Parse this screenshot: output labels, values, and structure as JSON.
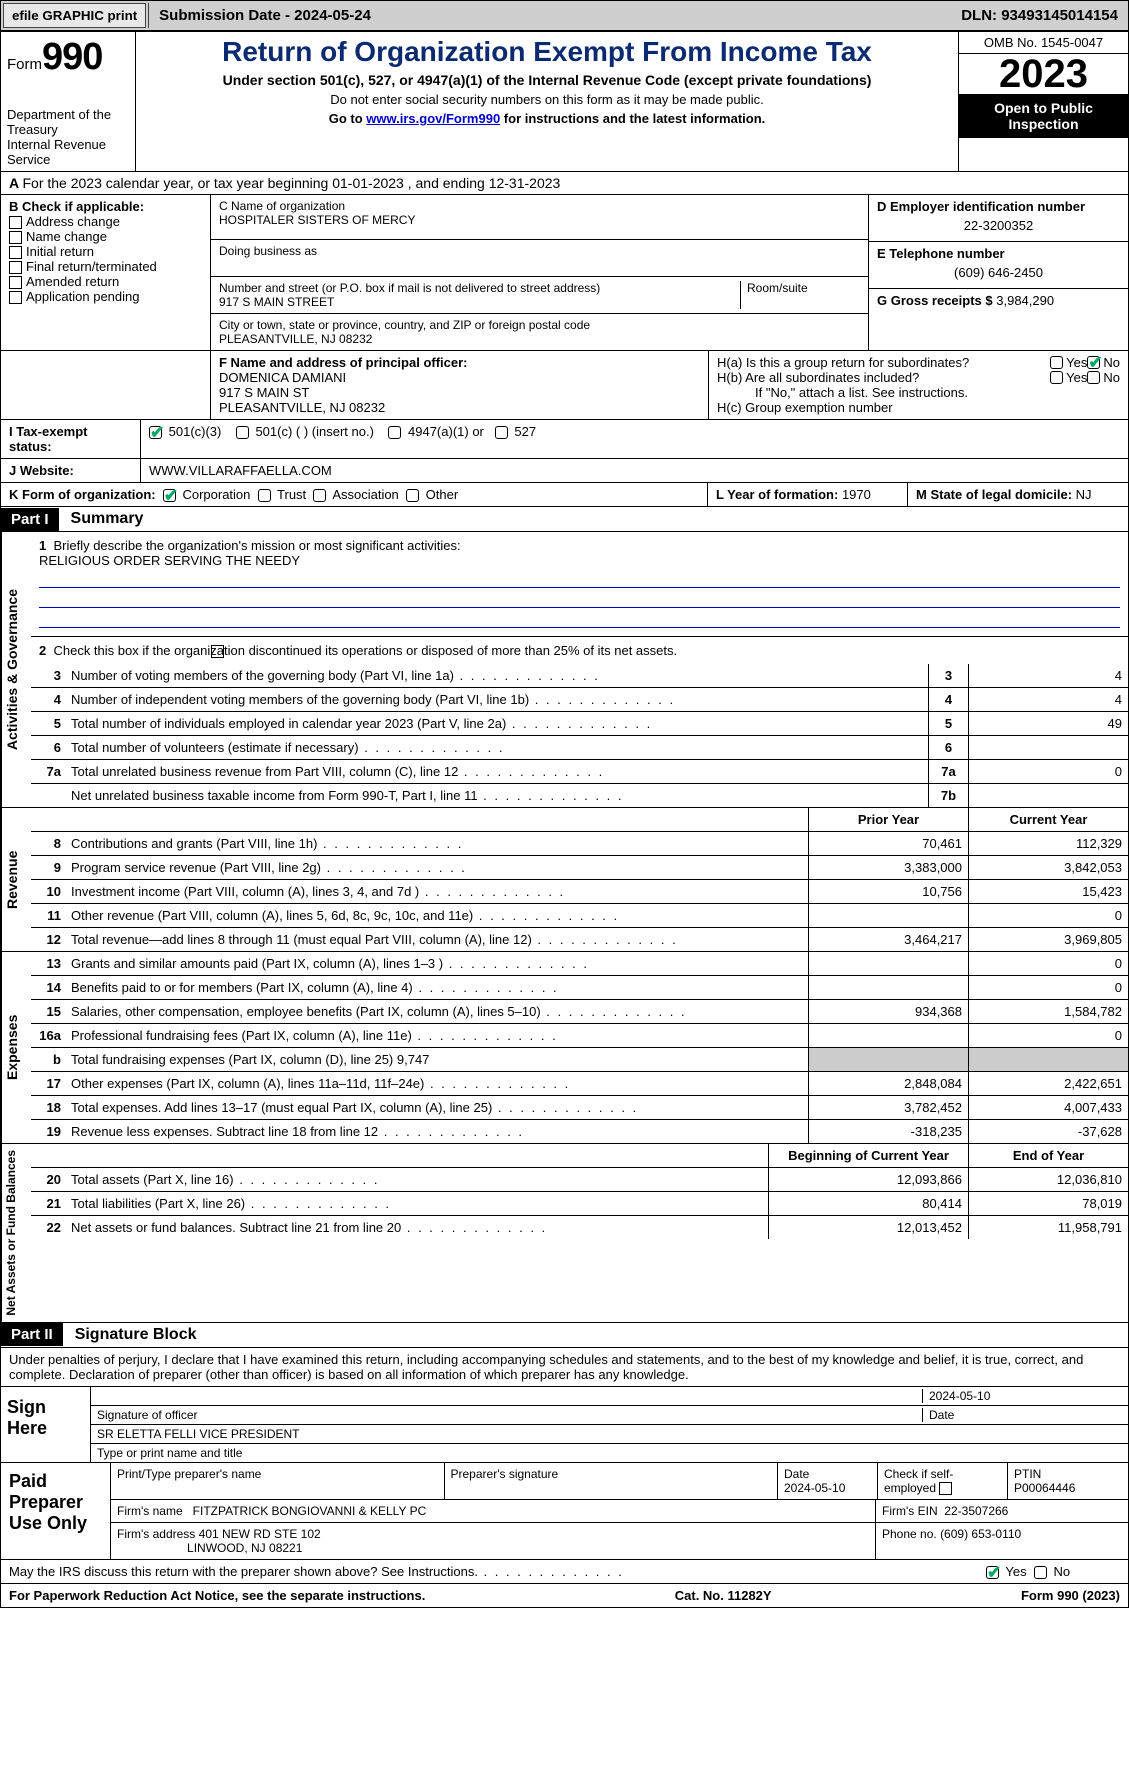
{
  "topbar": {
    "efile": "efile GRAPHIC print",
    "submission": "Submission Date - 2024-05-24",
    "dln": "DLN: 93493145014154"
  },
  "header": {
    "form_label": "Form",
    "form_num": "990",
    "dept": "Department of the Treasury",
    "irs": "Internal Revenue Service",
    "title": "Return of Organization Exempt From Income Tax",
    "subtitle": "Under section 501(c), 527, or 4947(a)(1) of the Internal Revenue Code (except private foundations)",
    "note1": "Do not enter social security numbers on this form as it may be made public.",
    "note2_pre": "Go to ",
    "note2_link": "www.irs.gov/Form990",
    "note2_post": " for instructions and the latest information.",
    "omb": "OMB No. 1545-0047",
    "year": "2023",
    "open": "Open to Public Inspection"
  },
  "A": "For the 2023 calendar year, or tax year beginning 01-01-2023   , and ending 12-31-2023",
  "B": {
    "label": "B Check if applicable:",
    "items": [
      "Address change",
      "Name change",
      "Initial return",
      "Final return/terminated",
      "Amended return",
      "Application pending"
    ]
  },
  "C": {
    "name_label": "C Name of organization",
    "name": "HOSPITALER SISTERS OF MERCY",
    "dba": "Doing business as",
    "addr_label": "Number and street (or P.O. box if mail is not delivered to street address)",
    "room": "Room/suite",
    "addr": "917 S MAIN STREET",
    "city_label": "City or town, state or province, country, and ZIP or foreign postal code",
    "city": "PLEASANTVILLE, NJ  08232"
  },
  "D": {
    "label": "D Employer identification number",
    "val": "22-3200352"
  },
  "E": {
    "label": "E Telephone number",
    "val": "(609) 646-2450"
  },
  "G": {
    "label": "G Gross receipts $",
    "val": "3,984,290"
  },
  "F": {
    "label": "F  Name and address of principal officer:",
    "name": "DOMENICA DAMIANI",
    "addr1": "917 S MAIN ST",
    "addr2": "PLEASANTVILLE, NJ  08232"
  },
  "H": {
    "a": "H(a)  Is this a group return for subordinates?",
    "b": "H(b)  Are all subordinates included?",
    "b_note": "If \"No,\" attach a list. See instructions.",
    "c": "H(c)  Group exemption number",
    "yes": "Yes",
    "no": "No"
  },
  "I": {
    "label": "I   Tax-exempt status:",
    "c3": "501(c)(3)",
    "c": "501(c) (  ) (insert no.)",
    "a1": "4947(a)(1) or",
    "s527": "527"
  },
  "J": {
    "label": "J   Website:",
    "val": "WWW.VILLARAFFAELLA.COM"
  },
  "K": {
    "label": "K Form of organization:",
    "corp": "Corporation",
    "trust": "Trust",
    "assoc": "Association",
    "other": "Other"
  },
  "L": {
    "label": "L Year of formation:",
    "val": "1970"
  },
  "M": {
    "label": "M State of legal domicile:",
    "val": "NJ"
  },
  "part1": {
    "num": "Part I",
    "title": "Summary"
  },
  "summary": {
    "q1": "Briefly describe the organization's mission or most significant activities:",
    "mission": "RELIGIOUS ORDER SERVING THE NEEDY",
    "q2": "Check this box        if the organization discontinued its operations or disposed of more than 25% of its net assets.",
    "lines": {
      "3": {
        "t": "Number of voting members of the governing body (Part VI, line 1a)",
        "v": "4"
      },
      "4": {
        "t": "Number of independent voting members of the governing body (Part VI, line 1b)",
        "v": "4"
      },
      "5": {
        "t": "Total number of individuals employed in calendar year 2023 (Part V, line 2a)",
        "v": "49"
      },
      "6": {
        "t": "Total number of volunteers (estimate if necessary)",
        "v": ""
      },
      "7a": {
        "t": "Total unrelated business revenue from Part VIII, column (C), line 12",
        "v": "0"
      },
      "7b": {
        "t": "Net unrelated business taxable income from Form 990-T, Part I, line 11",
        "v": ""
      }
    },
    "prior": "Prior Year",
    "current": "Current Year",
    "rev": {
      "8": {
        "t": "Contributions and grants (Part VIII, line 1h)",
        "p": "70,461",
        "c": "112,329"
      },
      "9": {
        "t": "Program service revenue (Part VIII, line 2g)",
        "p": "3,383,000",
        "c": "3,842,053"
      },
      "10": {
        "t": "Investment income (Part VIII, column (A), lines 3, 4, and 7d )",
        "p": "10,756",
        "c": "15,423"
      },
      "11": {
        "t": "Other revenue (Part VIII, column (A), lines 5, 6d, 8c, 9c, 10c, and 11e)",
        "p": "",
        "c": "0"
      },
      "12": {
        "t": "Total revenue—add lines 8 through 11 (must equal Part VIII, column (A), line 12)",
        "p": "3,464,217",
        "c": "3,969,805"
      }
    },
    "exp": {
      "13": {
        "t": "Grants and similar amounts paid (Part IX, column (A), lines 1–3 )",
        "p": "",
        "c": "0"
      },
      "14": {
        "t": "Benefits paid to or for members (Part IX, column (A), line 4)",
        "p": "",
        "c": "0"
      },
      "15": {
        "t": "Salaries, other compensation, employee benefits (Part IX, column (A), lines 5–10)",
        "p": "934,368",
        "c": "1,584,782"
      },
      "16a": {
        "t": "Professional fundraising fees (Part IX, column (A), line 11e)",
        "p": "",
        "c": "0"
      },
      "b": {
        "t": "Total fundraising expenses (Part IX, column (D), line 25) 9,747"
      },
      "17": {
        "t": "Other expenses (Part IX, column (A), lines 11a–11d, 11f–24e)",
        "p": "2,848,084",
        "c": "2,422,651"
      },
      "18": {
        "t": "Total expenses. Add lines 13–17 (must equal Part IX, column (A), line 25)",
        "p": "3,782,452",
        "c": "4,007,433"
      },
      "19": {
        "t": "Revenue less expenses. Subtract line 18 from line 12",
        "p": "-318,235",
        "c": "-37,628"
      }
    },
    "begin": "Beginning of Current Year",
    "end": "End of Year",
    "na": {
      "20": {
        "t": "Total assets (Part X, line 16)",
        "p": "12,093,866",
        "c": "12,036,810"
      },
      "21": {
        "t": "Total liabilities (Part X, line 26)",
        "p": "80,414",
        "c": "78,019"
      },
      "22": {
        "t": "Net assets or fund balances. Subtract line 21 from line 20",
        "p": "12,013,452",
        "c": "11,958,791"
      }
    }
  },
  "part2": {
    "num": "Part II",
    "title": "Signature Block"
  },
  "penalty": "Under penalties of perjury, I declare that I have examined this return, including accompanying schedules and statements, and to the best of my knowledge and belief, it is true, correct, and complete. Declaration of preparer (other than officer) is based on all information of which preparer has any knowledge.",
  "sign": {
    "here": "Sign Here",
    "date": "2024-05-10",
    "sig_label": "Signature of officer",
    "date_label": "Date",
    "officer": "SR ELETTA FELLI VICE PRESIDENT",
    "type_label": "Type or print name and title"
  },
  "paid": {
    "label": "Paid Preparer Use Only",
    "h1": "Print/Type preparer's name",
    "h2": "Preparer's signature",
    "h3": "Date",
    "h3v": "2024-05-10",
    "h4": "Check         if self-employed",
    "h5": "PTIN",
    "h5v": "P00064446",
    "firm": "Firm's name",
    "firmv": "FITZPATRICK BONGIOVANNI & KELLY PC",
    "ein": "Firm's EIN",
    "einv": "22-3507266",
    "addr": "Firm's address",
    "addrv1": "401 NEW RD STE 102",
    "addrv2": "LINWOOD, NJ  08221",
    "phone": "Phone no.",
    "phonev": "(609) 653-0110"
  },
  "discuss": "May the IRS discuss this return with the preparer shown above? See Instructions.",
  "footer": {
    "pra": "For Paperwork Reduction Act Notice, see the separate instructions.",
    "cat": "Cat. No. 11282Y",
    "form": "Form 990 (2023)"
  }
}
